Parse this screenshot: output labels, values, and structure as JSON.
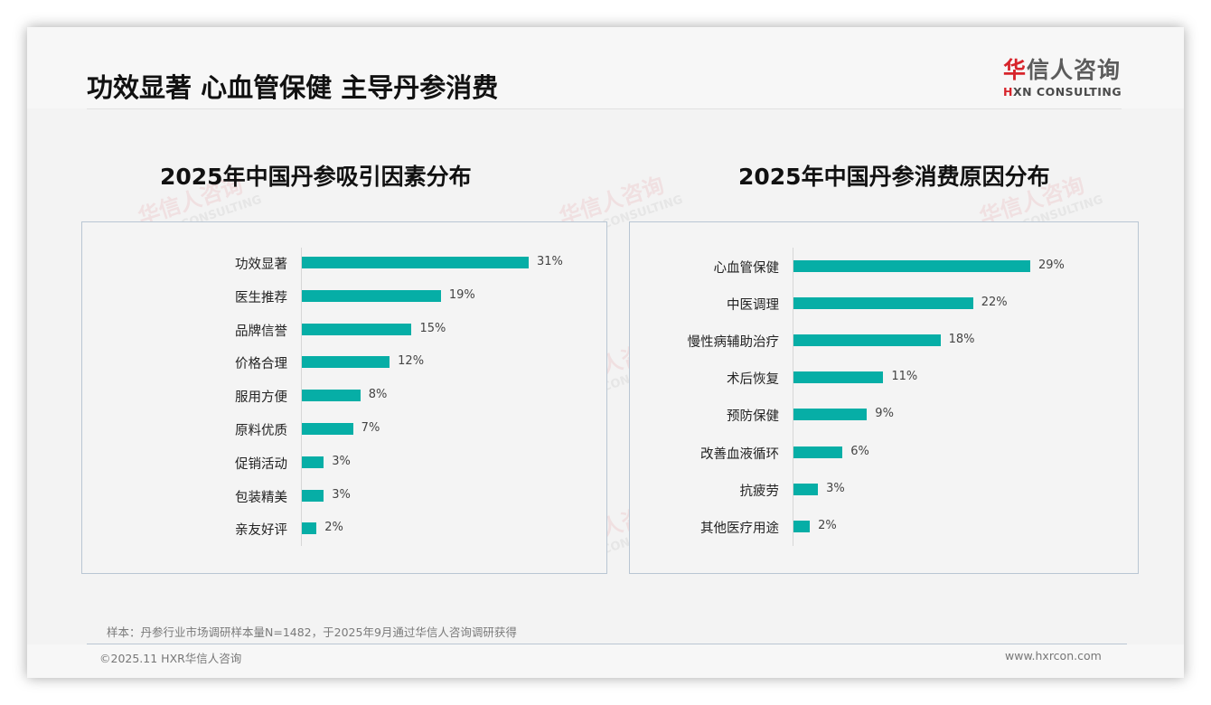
{
  "header": {
    "title": "功效显著 心血管保健 主导丹参消费",
    "logo": {
      "cn_red": "华",
      "cn_rest": "信人咨询",
      "en_red": "H",
      "en_rest": "XN CONSULTING"
    }
  },
  "watermark": {
    "cn": "华信人咨询",
    "en": "HXN CONSULTING"
  },
  "colors": {
    "bar": "#06aea6",
    "brand_red": "#d7242b",
    "panel_border": "#b9c6d3"
  },
  "chart_data": [
    {
      "type": "bar",
      "orientation": "horizontal",
      "title": "2025年中国丹参吸引因素分布",
      "categories": [
        "功效显著",
        "医生推荐",
        "品牌信誉",
        "价格合理",
        "服用方便",
        "原料优质",
        "促销活动",
        "包装精美",
        "亲友好评"
      ],
      "values": [
        31,
        19,
        15,
        12,
        8,
        7,
        3,
        3,
        2
      ],
      "labels": [
        "31%",
        "19%",
        "15%",
        "12%",
        "8%",
        "7%",
        "3%",
        "3%",
        "2%"
      ],
      "unit": "%",
      "xlabel": "",
      "ylabel": "",
      "grid": false,
      "legend": "none"
    },
    {
      "type": "bar",
      "orientation": "horizontal",
      "title": "2025年中国丹参消费原因分布",
      "categories": [
        "心血管保健",
        "中医调理",
        "慢性病辅助治疗",
        "术后恢复",
        "预防保健",
        "改善血液循环",
        "抗疲劳",
        "其他医疗用途"
      ],
      "values": [
        29,
        22,
        18,
        11,
        9,
        6,
        3,
        2
      ],
      "labels": [
        "29%",
        "22%",
        "18%",
        "11%",
        "9%",
        "6%",
        "3%",
        "2%"
      ],
      "unit": "%",
      "xlabel": "",
      "ylabel": "",
      "grid": false,
      "legend": "none"
    }
  ],
  "footer": {
    "sample_note": "样本：丹参行业市场调研样本量N=1482，于2025年9月通过华信人咨询调研获得",
    "copyright": "©2025.11 HXR华信人咨询",
    "website": "www.hxrcon.com"
  }
}
